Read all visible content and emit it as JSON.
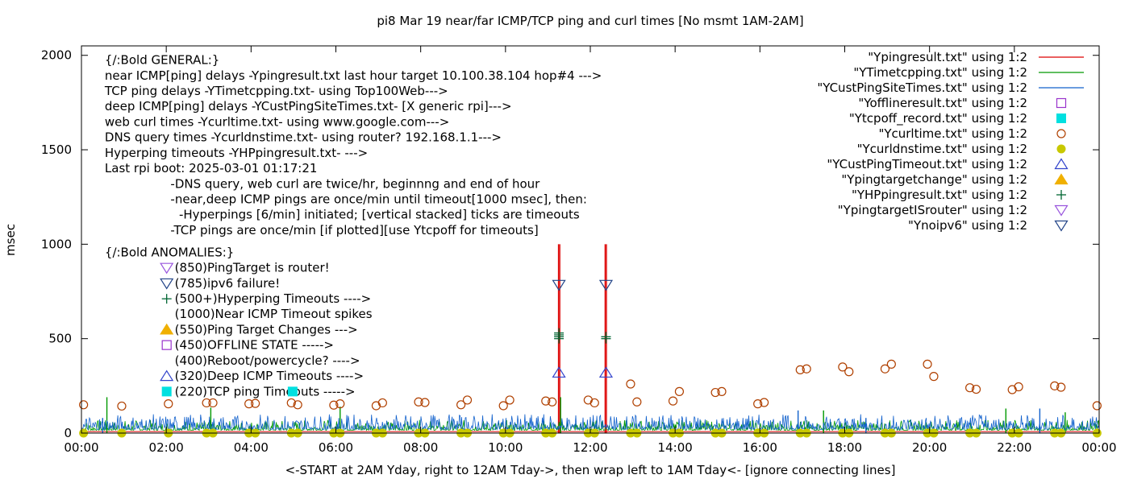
{
  "chart_data": {
    "type": "line",
    "title": "pi8 Mar 19  near/far ICMP/TCP ping and curl times [No msmt 1AM-2AM]",
    "ylabel": "msec",
    "xlabel": "<-START at 2AM Yday, right to 12AM Tday->, then wrap left to 1AM Tday<- [ignore connecting lines]",
    "ylim": [
      0,
      2050
    ],
    "xlim": [
      0,
      24
    ],
    "x_unit": "hour of day",
    "grid": false,
    "legend_position": "top-right",
    "y_ticks": [
      {
        "value": 0,
        "label": "0"
      },
      {
        "value": 500,
        "label": "500"
      },
      {
        "value": 1000,
        "label": "1000"
      },
      {
        "value": 1500,
        "label": "1500"
      },
      {
        "value": 2000,
        "label": "2000"
      }
    ],
    "x_ticks": [
      {
        "value": 0,
        "label": "00:00"
      },
      {
        "value": 2,
        "label": "02:00"
      },
      {
        "value": 4,
        "label": "04:00"
      },
      {
        "value": 6,
        "label": "06:00"
      },
      {
        "value": 8,
        "label": "08:00"
      },
      {
        "value": 10,
        "label": "10:00"
      },
      {
        "value": 12,
        "label": "12:00"
      },
      {
        "value": 14,
        "label": "14:00"
      },
      {
        "value": 16,
        "label": "16:00"
      },
      {
        "value": 18,
        "label": "18:00"
      },
      {
        "value": 20,
        "label": "20:00"
      },
      {
        "value": 22,
        "label": "22:00"
      },
      {
        "value": 24,
        "label": "00:00"
      }
    ],
    "annotations": [
      {
        "text": "{/:Bold GENERAL:}",
        "x": 0.55,
        "y": 1975
      },
      {
        "text": "near ICMP[ping] delays -Ypingresult.txt last hour target 10.100.38.104 hop#4 --->",
        "x": 0.55,
        "y": 1893
      },
      {
        "text": "TCP ping delays -YTimetcpping.txt- using Top100Web--->",
        "x": 0.55,
        "y": 1811
      },
      {
        "text": "deep ICMP[ping] delays -YCustPingSiteTimes.txt- [X generic rpi]--->",
        "x": 0.55,
        "y": 1730
      },
      {
        "text": "web curl times -Ycurltime.txt- using www.google.com--->",
        "x": 0.55,
        "y": 1648
      },
      {
        "text": "DNS query times -Ycurldnstime.txt- using router? 192.168.1.1--->",
        "x": 0.55,
        "y": 1566
      },
      {
        "text": "Hyperping timeouts -YHPpingresult.txt- --->",
        "x": 0.55,
        "y": 1484
      },
      {
        "text": "Last rpi boot: 2025-03-01 01:17:21",
        "x": 0.55,
        "y": 1402
      },
      {
        "text": "-DNS query, web curl are twice/hr, beginnng and end of hour",
        "x": 2.1,
        "y": 1320
      },
      {
        "text": "-near,deep ICMP pings are once/min until timeout[1000 msec], then:",
        "x": 2.1,
        "y": 1238
      },
      {
        "text": "-Hyperpings [6/min] initiated; [vertical stacked] ticks are timeouts",
        "x": 2.3,
        "y": 1157
      },
      {
        "text": "-TCP pings are once/min [if plotted][use Ytcpoff for timeouts]",
        "x": 2.1,
        "y": 1075
      },
      {
        "text": "{/:Bold ANOMALIES:}",
        "x": 0.55,
        "y": 957
      },
      {
        "text": "(850)PingTarget is router!",
        "x": 2.2,
        "y": 875,
        "marker": "tri_down_purple"
      },
      {
        "text": "(785)ipv6 failure!",
        "x": 2.2,
        "y": 793,
        "marker": "tri_down_blue"
      },
      {
        "text": "(500+)Hyperping Timeouts ---->",
        "x": 2.2,
        "y": 711,
        "marker": "plus_green"
      },
      {
        "text": "(1000)Near ICMP Timeout spikes",
        "x": 2.2,
        "y": 630
      },
      {
        "text": "(550)Ping Target Changes --->",
        "x": 2.2,
        "y": 548,
        "marker": "tri_up_orange"
      },
      {
        "text": "(450)OFFLINE STATE ----->",
        "x": 2.2,
        "y": 466,
        "marker": "square_purple"
      },
      {
        "text": "(400)Reboot/powercycle? ---->",
        "x": 2.2,
        "y": 384
      },
      {
        "text": "(320)Deep ICMP Timeouts ---->",
        "x": 2.2,
        "y": 302,
        "marker": "tri_up_blue"
      },
      {
        "text": "(220)TCP ping Timeouts ----->",
        "x": 2.2,
        "y": 220,
        "marker": "filled_square_cyan"
      }
    ],
    "annotation_markers": [
      {
        "marker": "filled_square_cyan",
        "x": 4.98,
        "y": 220
      }
    ],
    "series": [
      {
        "name": "\"Ypingresult.txt\" using 1:2",
        "style": "line",
        "color": "#dd0000",
        "baseline": [
          [
            0,
            8
          ],
          [
            24,
            8
          ]
        ],
        "spikes": [
          [
            11.25,
            1000
          ],
          [
            11.28,
            1000
          ],
          [
            12.35,
            1000
          ],
          [
            12.38,
            1000
          ]
        ]
      },
      {
        "name": "\"YTimetcpping.txt\" using 1:2",
        "style": "line",
        "color": "#009900",
        "noise": {
          "base": 15,
          "amp": 55
        },
        "spikes": [
          [
            0.6,
            190
          ],
          [
            3.05,
            135
          ],
          [
            6.1,
            140
          ],
          [
            11.3,
            190
          ],
          [
            17.5,
            120
          ],
          [
            21.8,
            130
          ],
          [
            23.2,
            110
          ]
        ]
      },
      {
        "name": "\"YCustPingSiteTimes.txt\" using 1:2",
        "style": "line",
        "color": "#1060cc",
        "noise": {
          "base": 20,
          "amp": 80
        },
        "spikes": [
          [
            0.5,
            80
          ],
          [
            16.9,
            120
          ],
          [
            18.5,
            80
          ],
          [
            22.6,
            130
          ]
        ]
      },
      {
        "name": "\"Yofflineresult.txt\" using 1:2",
        "style": "open-square",
        "color": "#9933cc",
        "points": []
      },
      {
        "name": "\"Ytcpoff_record.txt\" using 1:2",
        "style": "filled-square",
        "color": "#00e0e0",
        "points": []
      },
      {
        "name": "\"Ycurltime.txt\" using 1:2",
        "style": "open-circle",
        "color": "#b04000",
        "points": [
          [
            0.05,
            150
          ],
          [
            0.95,
            143
          ],
          [
            2.05,
            155
          ],
          [
            2.95,
            160
          ],
          [
            3.1,
            160
          ],
          [
            3.95,
            155
          ],
          [
            4.1,
            157
          ],
          [
            4.95,
            160
          ],
          [
            5.1,
            150
          ],
          [
            5.95,
            148
          ],
          [
            6.1,
            155
          ],
          [
            6.95,
            145
          ],
          [
            7.1,
            160
          ],
          [
            7.95,
            165
          ],
          [
            8.1,
            162
          ],
          [
            8.95,
            150
          ],
          [
            9.1,
            175
          ],
          [
            9.95,
            145
          ],
          [
            10.1,
            175
          ],
          [
            10.95,
            170
          ],
          [
            11.1,
            165
          ],
          [
            11.95,
            175
          ],
          [
            12.1,
            160
          ],
          [
            12.95,
            260
          ],
          [
            13.1,
            165
          ],
          [
            13.95,
            170
          ],
          [
            14.1,
            220
          ],
          [
            14.95,
            215
          ],
          [
            15.1,
            220
          ],
          [
            15.95,
            155
          ],
          [
            16.1,
            162
          ],
          [
            16.95,
            335
          ],
          [
            17.1,
            340
          ],
          [
            17.95,
            350
          ],
          [
            18.1,
            325
          ],
          [
            18.95,
            340
          ],
          [
            19.1,
            365
          ],
          [
            19.95,
            365
          ],
          [
            20.1,
            300
          ],
          [
            20.95,
            240
          ],
          [
            21.1,
            232
          ],
          [
            21.95,
            230
          ],
          [
            22.1,
            245
          ],
          [
            22.95,
            250
          ],
          [
            23.1,
            243
          ],
          [
            23.95,
            145
          ]
        ]
      },
      {
        "name": "\"Ycurldnstime.txt\" using 1:2",
        "style": "filled-circle",
        "color": "#c8c800",
        "points": [
          [
            0.05,
            0
          ],
          [
            0.95,
            0
          ],
          [
            2.05,
            0
          ],
          [
            2.95,
            0
          ],
          [
            3.1,
            0
          ],
          [
            3.95,
            0
          ],
          [
            4.1,
            0
          ],
          [
            4.95,
            0
          ],
          [
            5.1,
            0
          ],
          [
            5.95,
            0
          ],
          [
            6.1,
            0
          ],
          [
            6.95,
            0
          ],
          [
            7.1,
            0
          ],
          [
            7.95,
            0
          ],
          [
            8.1,
            0
          ],
          [
            8.95,
            0
          ],
          [
            9.1,
            0
          ],
          [
            9.95,
            0
          ],
          [
            10.1,
            0
          ],
          [
            10.95,
            0
          ],
          [
            11.1,
            0
          ],
          [
            11.95,
            0
          ],
          [
            12.1,
            0
          ],
          [
            12.95,
            0
          ],
          [
            13.1,
            0
          ],
          [
            13.95,
            0
          ],
          [
            14.1,
            0
          ],
          [
            14.95,
            0
          ],
          [
            15.1,
            0
          ],
          [
            15.95,
            0
          ],
          [
            16.1,
            0
          ],
          [
            16.95,
            0
          ],
          [
            17.1,
            0
          ],
          [
            17.95,
            0
          ],
          [
            18.1,
            0
          ],
          [
            18.95,
            0
          ],
          [
            19.1,
            0
          ],
          [
            19.95,
            0
          ],
          [
            20.1,
            0
          ],
          [
            20.95,
            0
          ],
          [
            21.1,
            0
          ],
          [
            21.95,
            0
          ],
          [
            22.1,
            0
          ],
          [
            22.95,
            0
          ],
          [
            23.1,
            0
          ],
          [
            23.95,
            0
          ]
        ]
      },
      {
        "name": "\"YCustPingTimeout.txt\" using 1:2",
        "style": "open-triangle-up",
        "color": "#3344cc",
        "points": [
          [
            11.26,
            320
          ],
          [
            12.37,
            320
          ]
        ]
      },
      {
        "name": "\"Ypingtargetchange\" using 1:2",
        "style": "filled-triangle-up",
        "color": "#f0b000",
        "points": []
      },
      {
        "name": "\"YHPpingresult.txt\" using 1:2",
        "style": "plus",
        "color": "#006633",
        "points": [
          [
            11.26,
            500
          ],
          [
            11.26,
            510
          ],
          [
            11.26,
            520
          ],
          [
            11.26,
            530
          ],
          [
            12.37,
            500
          ],
          [
            12.37,
            510
          ]
        ]
      },
      {
        "name": "\"YpingtargetISrouter\" using 1:2",
        "style": "open-triangle-down",
        "color": "#9955dd",
        "points": []
      },
      {
        "name": "\"Ynoipv6\" using 1:2",
        "style": "open-triangle-down",
        "color": "#224488",
        "points": [
          [
            11.26,
            785
          ],
          [
            12.37,
            785
          ]
        ]
      }
    ]
  }
}
